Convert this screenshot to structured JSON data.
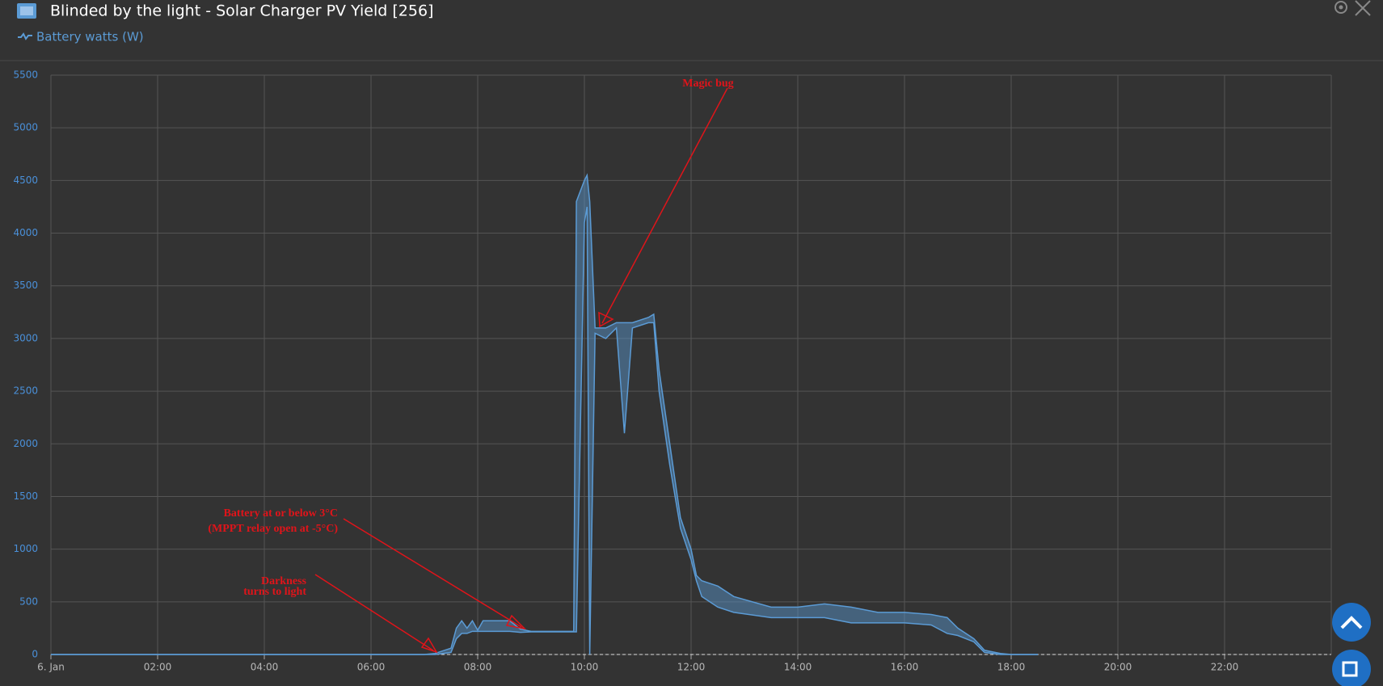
{
  "chart_data": {
    "type": "area_range",
    "title": "Blinded by the light - Solar Charger PV Yield [256]",
    "series": [
      {
        "name": "Battery watts (W)",
        "color": "#5b9bd5",
        "x": [
          0,
          7,
          7.2,
          7.5,
          7.6,
          7.7,
          7.8,
          7.9,
          8.0,
          8.1,
          8.3,
          8.6,
          8.8,
          9.0,
          9.5,
          9.8,
          9.85,
          10.0,
          10.05,
          10.1,
          10.2,
          10.4,
          10.6,
          10.75,
          10.9,
          11.2,
          11.3,
          11.4,
          11.6,
          11.8,
          12.0,
          12.1,
          12.2,
          12.5,
          12.8,
          13.5,
          14.0,
          14.5,
          15.0,
          15.5,
          16.0,
          16.5,
          16.8,
          17.0,
          17.3,
          17.5,
          17.8,
          18.0,
          18.5
        ],
        "low": [
          0,
          0,
          0,
          20,
          150,
          200,
          200,
          220,
          220,
          220,
          220,
          220,
          210,
          215,
          215,
          215,
          215,
          4100,
          4250,
          0,
          3050,
          3000,
          3100,
          2100,
          3100,
          3150,
          3150,
          2500,
          1800,
          1200,
          900,
          700,
          550,
          450,
          400,
          350,
          350,
          350,
          300,
          300,
          300,
          280,
          200,
          180,
          120,
          20,
          0,
          0,
          0
        ],
        "high": [
          0,
          0,
          10,
          60,
          250,
          320,
          250,
          320,
          230,
          320,
          320,
          320,
          240,
          220,
          220,
          220,
          4300,
          4500,
          4550,
          4300,
          3100,
          3100,
          3150,
          3150,
          3150,
          3200,
          3230,
          2700,
          2000,
          1300,
          1000,
          750,
          700,
          650,
          550,
          450,
          450,
          480,
          450,
          400,
          400,
          380,
          350,
          250,
          150,
          40,
          10,
          0,
          0
        ]
      }
    ],
    "xlim": [
      0,
      24
    ],
    "xticks": [
      {
        "value": 0,
        "label": "6. Jan"
      },
      {
        "value": 2,
        "label": "02:00"
      },
      {
        "value": 4,
        "label": "04:00"
      },
      {
        "value": 6,
        "label": "06:00"
      },
      {
        "value": 8,
        "label": "08:00"
      },
      {
        "value": 10,
        "label": "10:00"
      },
      {
        "value": 12,
        "label": "12:00"
      },
      {
        "value": 14,
        "label": "14:00"
      },
      {
        "value": 16,
        "label": "16:00"
      },
      {
        "value": 18,
        "label": "18:00"
      },
      {
        "value": 20,
        "label": "20:00"
      },
      {
        "value": 22,
        "label": "22:00"
      }
    ],
    "ylim": [
      0,
      5500
    ],
    "yticks": [
      0,
      500,
      1000,
      1500,
      2000,
      2500,
      3000,
      3500,
      4000,
      4500,
      5000,
      5500
    ],
    "grid": true,
    "annotations": [
      "Magic bug",
      "Battery at or below 3°C",
      "(MPPT relay open at -5°C)",
      "Darkness",
      "turns to light"
    ]
  }
}
